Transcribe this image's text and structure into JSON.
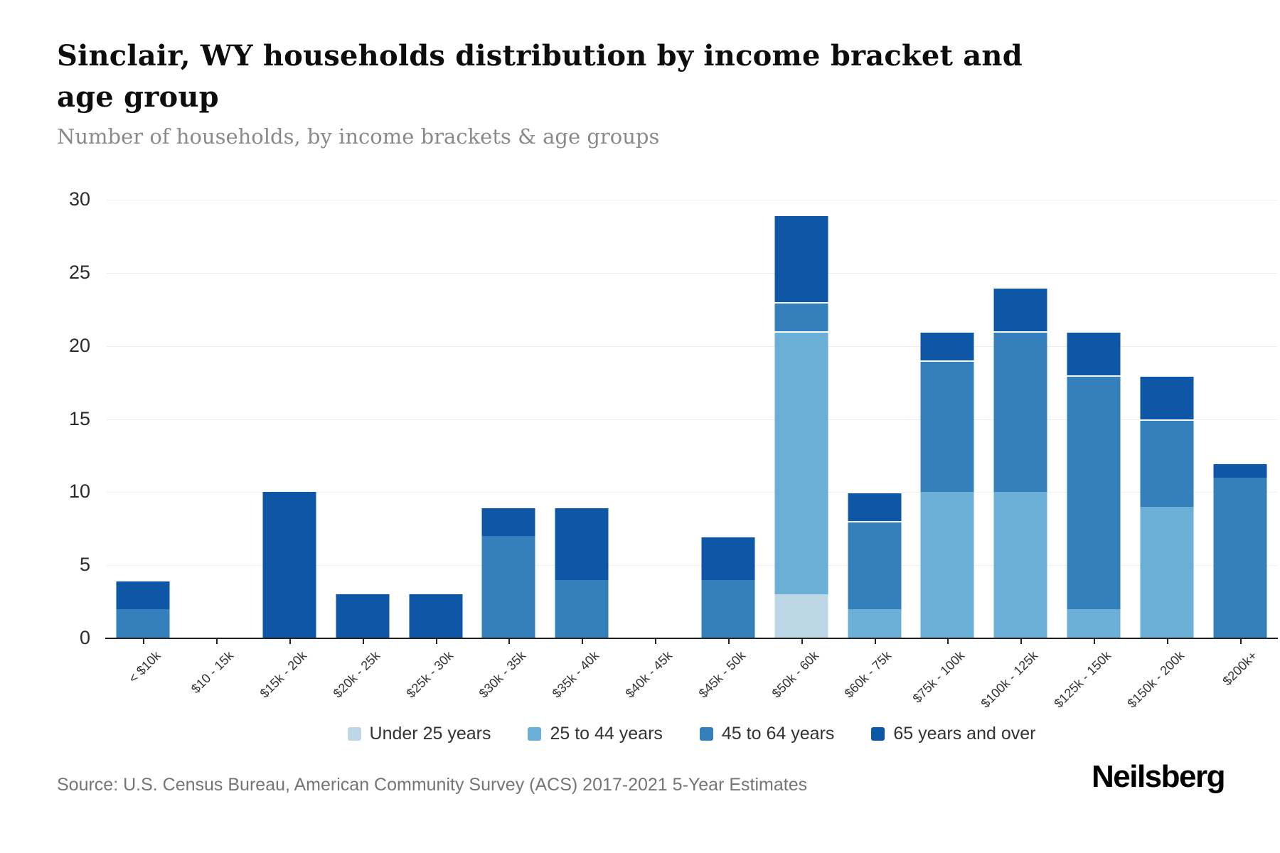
{
  "header": {
    "title": "Sinclair, WY households distribution by income bracket and age group",
    "subtitle": "Number of households, by income brackets & age groups"
  },
  "chart_data": {
    "type": "bar",
    "stacked": true,
    "title": "Sinclair, WY households distribution by income bracket and age group",
    "subtitle": "Number of households, by income brackets & age groups",
    "xlabel": "",
    "ylabel": "Number of households",
    "ylim": [
      0,
      30
    ],
    "yticks": [
      0,
      5,
      10,
      15,
      20,
      25,
      30
    ],
    "grid": true,
    "legend_position": "bottom",
    "categories": [
      "< $10k",
      "$10 - 15k",
      "$15k - 20k",
      "$20k - 25k",
      "$25k - 30k",
      "$30k - 35k",
      "$35k - 40k",
      "$40k - 45k",
      "$45k - 50k",
      "$50k - 60k",
      "$60k - 75k",
      "$75k - 100k",
      "$100k - 125k",
      "$125k - 150k",
      "$150k - 200k",
      "$200k+"
    ],
    "series": [
      {
        "name": "Under 25 years",
        "color": "#bdd7e7",
        "values": [
          0,
          0,
          0,
          0,
          0,
          0,
          0,
          0,
          0,
          3,
          0,
          0,
          0,
          0,
          0,
          0
        ]
      },
      {
        "name": "25 to 44 years",
        "color": "#6baed6",
        "values": [
          0,
          0,
          0,
          0,
          0,
          0,
          0,
          0,
          0,
          18,
          2,
          10,
          10,
          2,
          9,
          0
        ]
      },
      {
        "name": "45 to 64 years",
        "color": "#3380bd",
        "values": [
          2,
          0,
          0,
          0,
          0,
          7,
          4,
          0,
          4,
          2,
          6,
          9,
          11,
          16,
          6,
          11
        ]
      },
      {
        "name": "65 years and over",
        "color": "#0d57a6",
        "values": [
          2,
          0,
          10,
          3,
          3,
          2,
          5,
          0,
          3,
          6,
          2,
          2,
          3,
          3,
          3,
          1
        ]
      }
    ],
    "totals": [
      4,
      0,
      10,
      3,
      3,
      9,
      9,
      0,
      7,
      29,
      10,
      21,
      24,
      21,
      18,
      12
    ]
  },
  "footer": {
    "source": "Source: U.S. Census Bureau, American Community Survey (ACS) 2017-2021 5-Year Estimates",
    "brand": "Neilsberg"
  }
}
